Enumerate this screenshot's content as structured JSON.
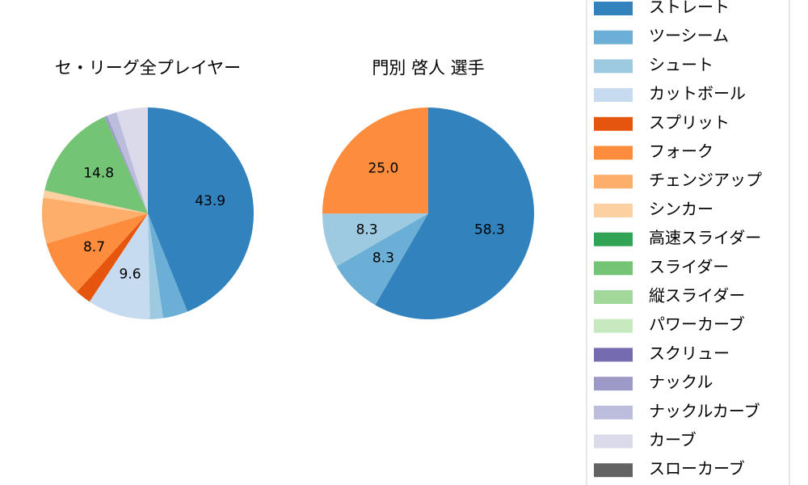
{
  "chart_data": [
    {
      "type": "pie",
      "title": "セ・リーグ全プレイヤー",
      "categories": [
        "ストレート",
        "ツーシーム",
        "シュート",
        "カットボール",
        "スプリット",
        "フォーク",
        "チェンジアップ",
        "シンカー",
        "高速スライダー",
        "スライダー",
        "縦スライダー",
        "パワーカーブ",
        "スクリュー",
        "ナックル",
        "ナックルカーブ",
        "カーブ",
        "スローカーブ"
      ],
      "colors": [
        "#3182bd",
        "#6baed6",
        "#9ecae1",
        "#c6dbef",
        "#e6550d",
        "#fd8d3c",
        "#fdae6b",
        "#fdd0a2",
        "#31a354",
        "#74c476",
        "#a1d99b",
        "#c7e9c0",
        "#756bb1",
        "#9e9ac8",
        "#bcbddc",
        "#dadaeb",
        "#636363"
      ],
      "values": [
        43.9,
        3.8,
        2.0,
        9.6,
        2.4,
        8.7,
        7.0,
        1.1,
        null,
        14.8,
        null,
        null,
        null,
        0.4,
        1.5,
        4.8,
        null
      ],
      "value_labels": [
        "43.9",
        null,
        null,
        "9.6",
        null,
        "8.7",
        null,
        null,
        null,
        "14.8",
        null,
        null,
        null,
        null,
        null,
        null,
        null
      ]
    },
    {
      "type": "pie",
      "title": "門別 啓人  選手",
      "values": [
        58.3,
        8.3,
        8.3,
        null,
        null,
        25.0,
        null,
        null,
        null,
        null,
        null,
        null,
        null,
        null,
        null,
        null,
        null
      ],
      "value_labels": [
        "58.3",
        "8.3",
        "8.3",
        null,
        null,
        "25.0",
        null,
        null,
        null,
        null,
        null,
        null,
        null,
        null,
        null,
        null,
        null
      ]
    }
  ]
}
